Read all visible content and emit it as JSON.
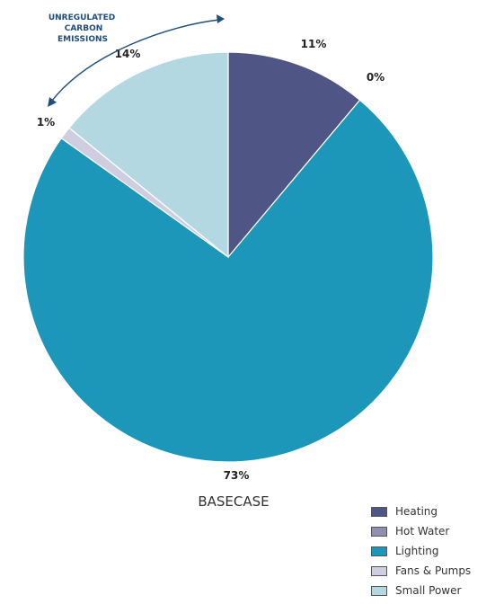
{
  "chart_data": {
    "type": "pie",
    "title": "",
    "caption": "BASECASE",
    "slices": [
      {
        "label": "Heating",
        "value": 11,
        "display": "11%",
        "color": "#4f5585"
      },
      {
        "label": "Hot Water",
        "value": 0,
        "display": "0%",
        "color": "#8f8fb0"
      },
      {
        "label": "Lighting",
        "value": 73,
        "display": "73%",
        "color": "#1c96b9"
      },
      {
        "label": "Fans & Pumps",
        "value": 1,
        "display": "1%",
        "color": "#cfcde0"
      },
      {
        "label": "Small Power",
        "value": 14,
        "display": "14%",
        "color": "#b3d8e2"
      }
    ],
    "annotation": {
      "lines": [
        "UNREGULATED",
        "CARBON",
        "EMISSIONS"
      ],
      "color": "#1f4e7a"
    },
    "legend_position": "bottom-right"
  }
}
